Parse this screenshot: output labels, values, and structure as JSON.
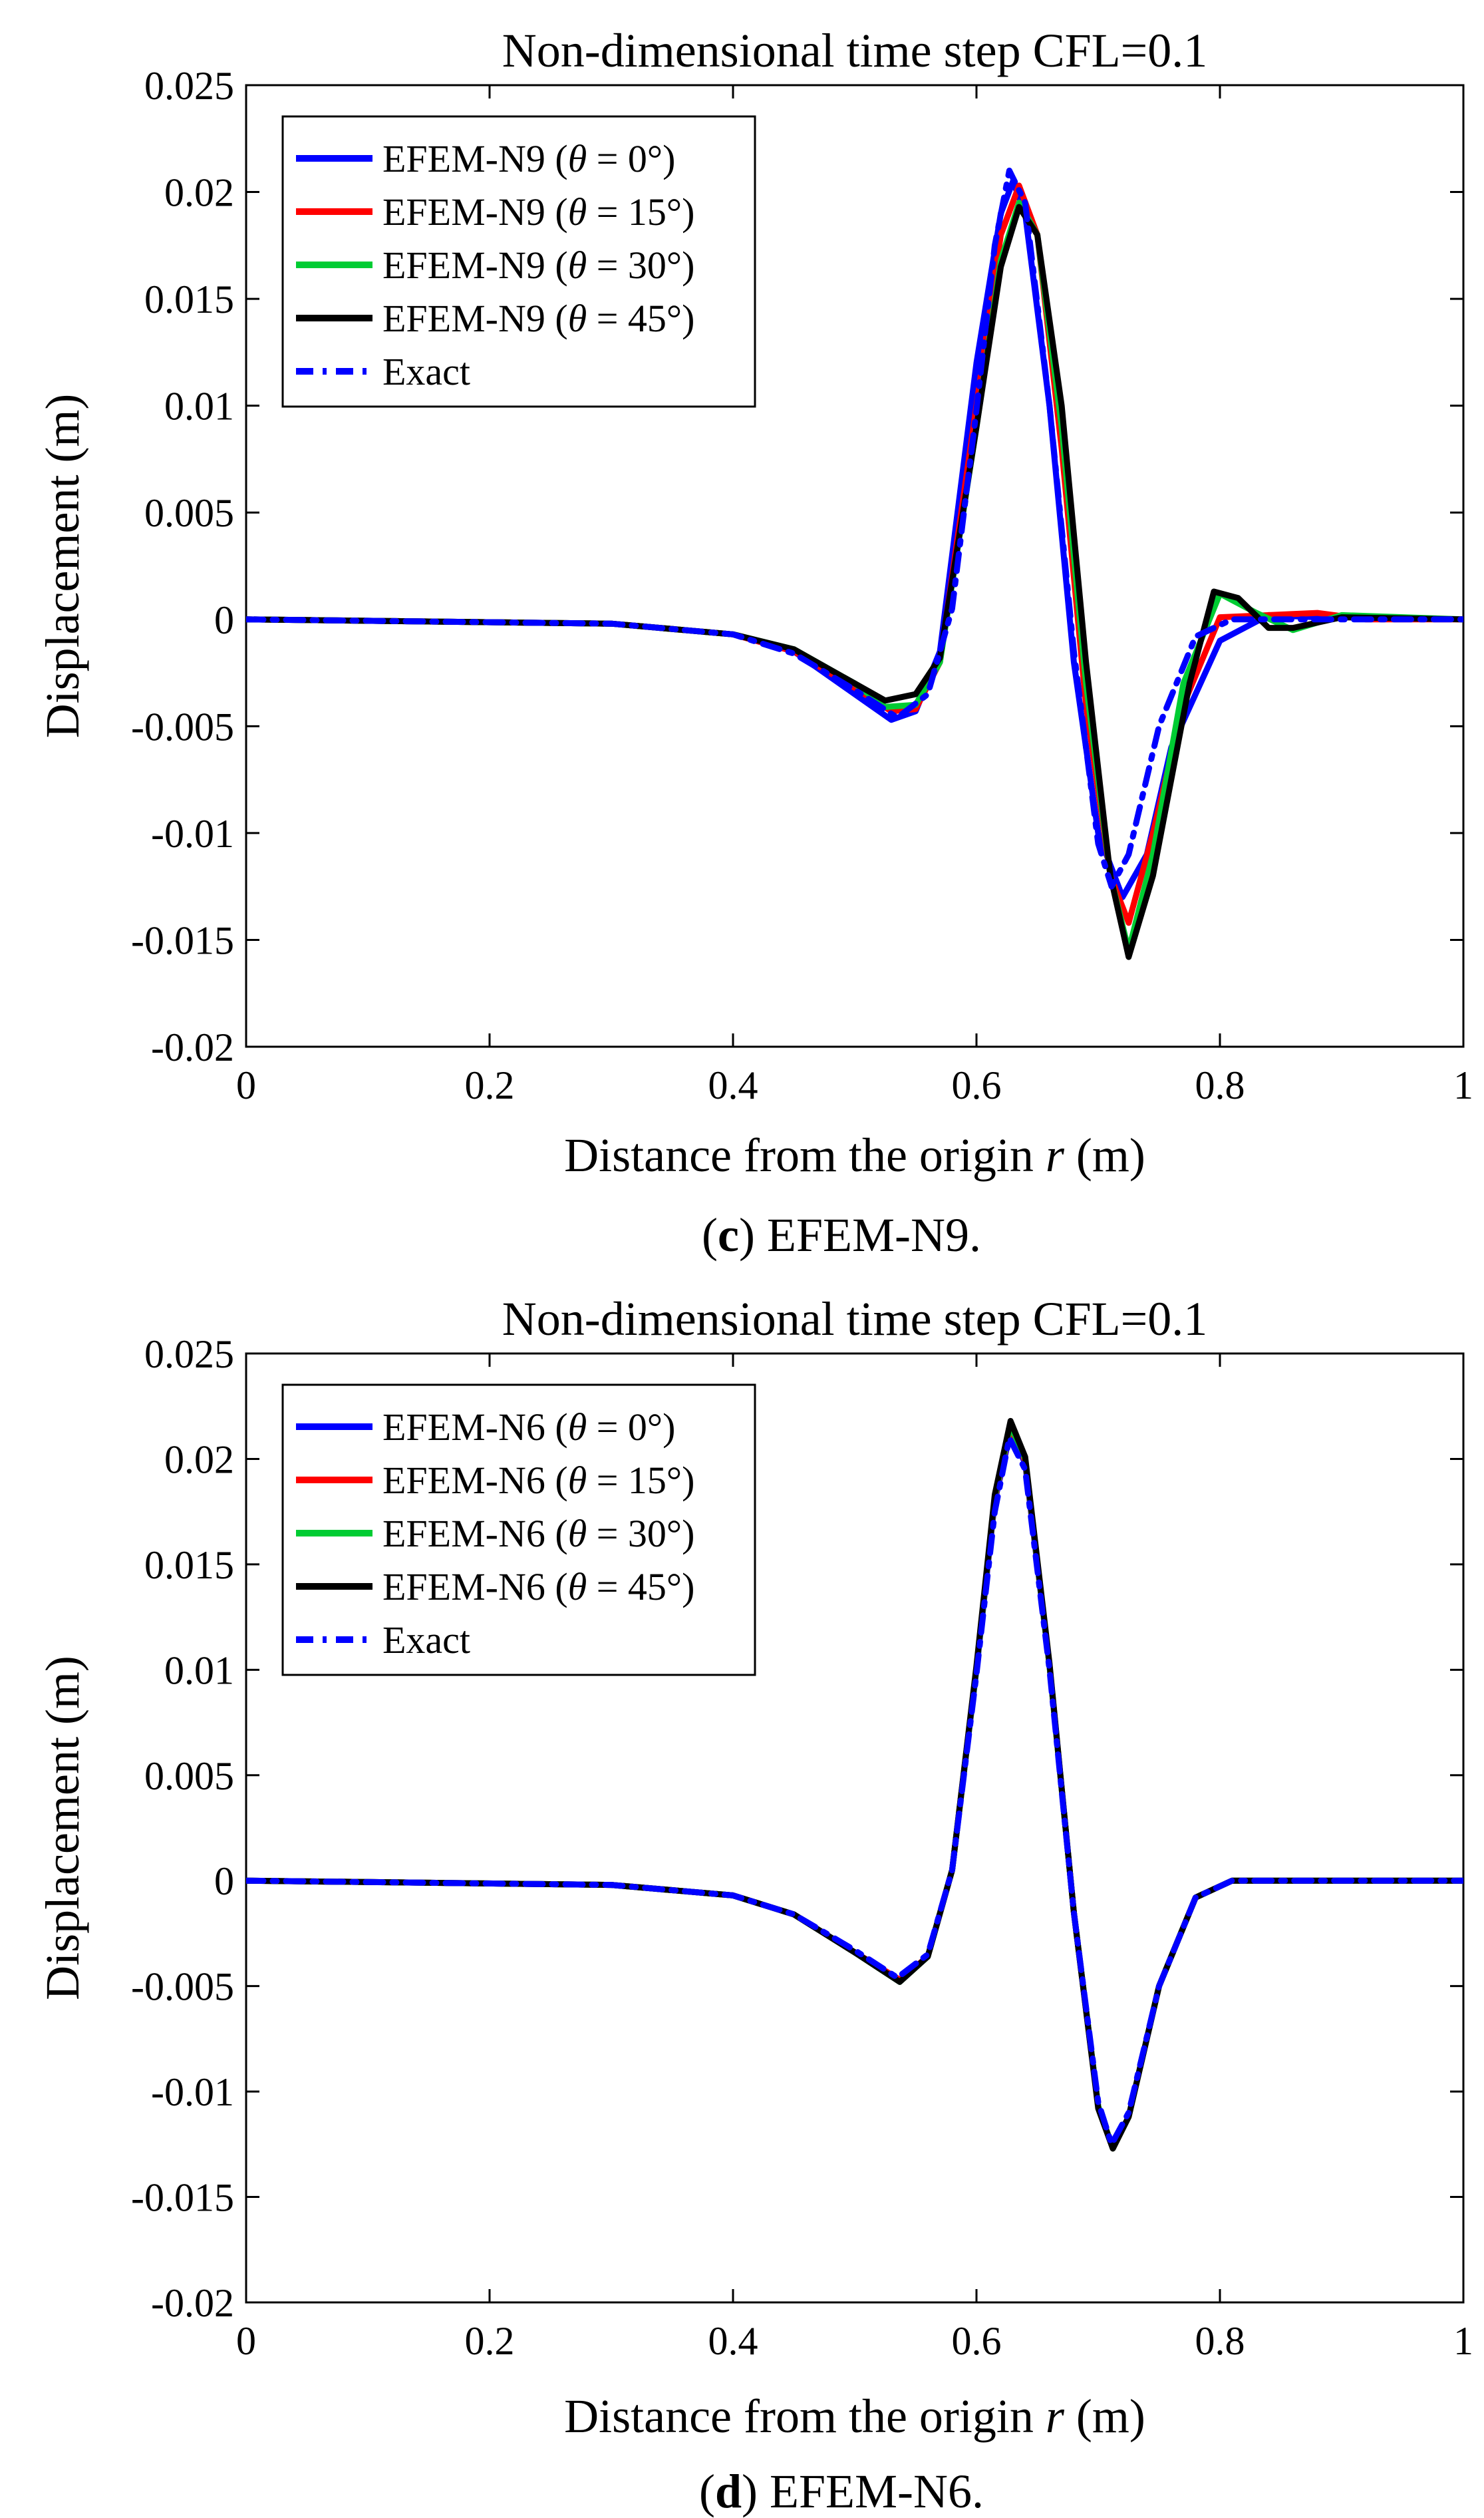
{
  "chart_data": [
    {
      "type": "line",
      "title": "Non-dimensional time step CFL=0.1",
      "xlabel_prefix": "Distance from the origin ",
      "xlabel_var": "r",
      "xlabel_suffix": " (m)",
      "ylabel": "Displacement (m)",
      "xlim": [
        0,
        1
      ],
      "ylim": [
        -0.02,
        0.025
      ],
      "xticks": [
        0,
        0.2,
        0.4,
        0.6,
        0.8,
        1
      ],
      "xtick_labels": [
        "0",
        "0.2",
        "0.4",
        "0.6",
        "0.8",
        "1"
      ],
      "yticks": [
        -0.02,
        -0.015,
        -0.01,
        -0.005,
        0,
        0.005,
        0.01,
        0.015,
        0.02,
        0.025
      ],
      "ytick_labels": [
        "-0.02",
        "-0.015",
        "-0.01",
        "-0.005",
        "0",
        "0.005",
        "0.01",
        "0.015",
        "0.02",
        "0.025"
      ],
      "grid": false,
      "legend_position": "top-left",
      "caption_letter": "c",
      "caption_text": " EFEM-N9.",
      "series": [
        {
          "name": "EFEM-N9",
          "theta": "0°",
          "color": "#0000ff",
          "dash": "solid",
          "x": [
            0,
            0.3,
            0.4,
            0.45,
            0.5,
            0.53,
            0.55,
            0.57,
            0.6,
            0.62,
            0.63,
            0.64,
            0.66,
            0.68,
            0.7,
            0.72,
            0.74,
            0.76,
            0.8,
            0.84,
            0.88,
            0.92,
            1
          ],
          "y": [
            0,
            -0.0002,
            -0.0007,
            -0.0015,
            -0.0035,
            -0.0047,
            -0.0043,
            -0.0015,
            0.012,
            0.019,
            0.0205,
            0.019,
            0.01,
            -0.002,
            -0.01,
            -0.013,
            -0.011,
            -0.006,
            -0.001,
            0.0002,
            0.0001,
            0.0001,
            0
          ]
        },
        {
          "name": "EFEM-N9",
          "theta": "15°",
          "color": "#ff0000",
          "dash": "solid",
          "x": [
            0,
            0.3,
            0.4,
            0.45,
            0.5,
            0.53,
            0.55,
            0.57,
            0.6,
            0.62,
            0.635,
            0.65,
            0.67,
            0.69,
            0.71,
            0.725,
            0.745,
            0.77,
            0.8,
            0.84,
            0.88,
            0.92,
            1
          ],
          "y": [
            0,
            -0.0002,
            -0.0007,
            -0.0015,
            -0.0032,
            -0.0043,
            -0.0042,
            -0.002,
            0.01,
            0.018,
            0.0203,
            0.018,
            0.008,
            -0.004,
            -0.012,
            -0.0142,
            -0.01,
            -0.004,
            0.0001,
            0.0002,
            0.0003,
            0,
            0
          ]
        },
        {
          "name": "EFEM-N9",
          "theta": "30°",
          "color": "#00cc33",
          "dash": "solid",
          "x": [
            0,
            0.3,
            0.4,
            0.45,
            0.5,
            0.525,
            0.55,
            0.57,
            0.6,
            0.62,
            0.635,
            0.65,
            0.67,
            0.69,
            0.71,
            0.725,
            0.745,
            0.77,
            0.8,
            0.83,
            0.86,
            0.9,
            1
          ],
          "y": [
            0,
            -0.0002,
            -0.0007,
            -0.0014,
            -0.003,
            -0.0041,
            -0.004,
            -0.002,
            0.009,
            0.0168,
            0.0195,
            0.018,
            0.009,
            -0.003,
            -0.012,
            -0.0155,
            -0.011,
            -0.003,
            0.0012,
            0.0003,
            -0.0005,
            0.0002,
            0
          ]
        },
        {
          "name": "EFEM-N9",
          "theta": "45°",
          "color": "#000000",
          "dash": "solid",
          "x": [
            0,
            0.3,
            0.4,
            0.45,
            0.5,
            0.525,
            0.55,
            0.57,
            0.6,
            0.62,
            0.635,
            0.65,
            0.67,
            0.69,
            0.71,
            0.725,
            0.745,
            0.775,
            0.795,
            0.815,
            0.84,
            0.86,
            0.9,
            1
          ],
          "y": [
            0,
            -0.0002,
            -0.0007,
            -0.0014,
            -0.003,
            -0.0038,
            -0.0035,
            -0.0018,
            0.009,
            0.0165,
            0.0193,
            0.018,
            0.01,
            -0.002,
            -0.012,
            -0.0158,
            -0.012,
            -0.003,
            0.0013,
            0.001,
            -0.0004,
            -0.0004,
            0.0001,
            0
          ]
        },
        {
          "name": "Exact",
          "theta": "",
          "color": "#0000ff",
          "dash": "dashdot",
          "x": [
            0,
            0.3,
            0.4,
            0.45,
            0.5,
            0.535,
            0.56,
            0.58,
            0.6,
            0.615,
            0.627,
            0.64,
            0.66,
            0.68,
            0.7,
            0.711,
            0.725,
            0.75,
            0.78,
            0.81,
            0.85,
            1
          ],
          "y": [
            0,
            -0.0002,
            -0.0007,
            -0.0016,
            -0.0033,
            -0.0046,
            -0.0035,
            0.0005,
            0.0098,
            0.0175,
            0.021,
            0.0195,
            0.01,
            -0.0015,
            -0.0105,
            -0.0125,
            -0.011,
            -0.005,
            -0.0008,
            0,
            0,
            0
          ]
        }
      ]
    },
    {
      "type": "line",
      "title": "Non-dimensional time step CFL=0.1",
      "xlabel_prefix": "Distance from the origin ",
      "xlabel_var": "r",
      "xlabel_suffix": " (m)",
      "ylabel": "Displacement (m)",
      "xlim": [
        0,
        1
      ],
      "ylim": [
        -0.02,
        0.025
      ],
      "xticks": [
        0,
        0.2,
        0.4,
        0.6,
        0.8,
        1
      ],
      "xtick_labels": [
        "0",
        "0.2",
        "0.4",
        "0.6",
        "0.8",
        "1"
      ],
      "yticks": [
        -0.02,
        -0.015,
        -0.01,
        -0.005,
        0,
        0.005,
        0.01,
        0.015,
        0.02,
        0.025
      ],
      "ytick_labels": [
        "-0.02",
        "-0.015",
        "-0.01",
        "-0.005",
        "0",
        "0.005",
        "0.01",
        "0.015",
        "0.02",
        "0.025"
      ],
      "grid": false,
      "legend_position": "top-left",
      "caption_letter": "d",
      "caption_text": " EFEM-N6.",
      "series": [
        {
          "name": "EFEM-N6",
          "theta": "0°",
          "color": "#0000ff",
          "dash": "solid",
          "x": [
            0,
            0.3,
            0.4,
            0.45,
            0.5,
            0.537,
            0.56,
            0.58,
            0.6,
            0.615,
            0.628,
            0.64,
            0.66,
            0.68,
            0.7,
            0.712,
            0.725,
            0.75,
            0.78,
            0.81,
            0.85,
            1
          ],
          "y": [
            0,
            -0.0002,
            -0.0007,
            -0.0016,
            -0.0034,
            -0.0047,
            -0.0036,
            0.0005,
            0.01,
            0.018,
            0.0213,
            0.0198,
            0.0102,
            -0.0015,
            -0.0107,
            -0.0127,
            -0.0112,
            -0.005,
            -0.0008,
            0,
            0,
            0
          ]
        },
        {
          "name": "EFEM-N6",
          "theta": "15°",
          "color": "#ff0000",
          "dash": "solid",
          "x": [
            0,
            0.3,
            0.4,
            0.45,
            0.5,
            0.537,
            0.56,
            0.58,
            0.6,
            0.615,
            0.628,
            0.64,
            0.66,
            0.68,
            0.7,
            0.712,
            0.725,
            0.75,
            0.78,
            0.81,
            0.85,
            1
          ],
          "y": [
            0,
            -0.0002,
            -0.0007,
            -0.0016,
            -0.0034,
            -0.0047,
            -0.0036,
            0.0005,
            0.0101,
            0.0181,
            0.0215,
            0.0199,
            0.0102,
            -0.0015,
            -0.0107,
            -0.0127,
            -0.0112,
            -0.005,
            -0.0008,
            0,
            0,
            0
          ]
        },
        {
          "name": "EFEM-N6",
          "theta": "30°",
          "color": "#00cc33",
          "dash": "solid",
          "x": [
            0,
            0.3,
            0.4,
            0.45,
            0.5,
            0.537,
            0.56,
            0.58,
            0.6,
            0.615,
            0.628,
            0.64,
            0.66,
            0.68,
            0.7,
            0.712,
            0.725,
            0.75,
            0.78,
            0.81,
            0.85,
            1
          ],
          "y": [
            0,
            -0.0002,
            -0.0007,
            -0.0016,
            -0.0034,
            -0.0048,
            -0.0036,
            0.0005,
            0.0101,
            0.0182,
            0.0216,
            0.02,
            0.0102,
            -0.0015,
            -0.0107,
            -0.0127,
            -0.0112,
            -0.005,
            -0.0008,
            0,
            0,
            0
          ]
        },
        {
          "name": "EFEM-N6",
          "theta": "45°",
          "color": "#000000",
          "dash": "solid",
          "x": [
            0,
            0.3,
            0.4,
            0.45,
            0.5,
            0.537,
            0.56,
            0.58,
            0.6,
            0.615,
            0.628,
            0.64,
            0.66,
            0.68,
            0.7,
            0.712,
            0.725,
            0.75,
            0.78,
            0.81,
            0.85,
            1
          ],
          "y": [
            0,
            -0.0002,
            -0.0007,
            -0.0016,
            -0.0034,
            -0.0048,
            -0.0036,
            0.0005,
            0.0102,
            0.0183,
            0.0218,
            0.0201,
            0.0103,
            -0.0015,
            -0.0108,
            -0.0127,
            -0.0112,
            -0.005,
            -0.0008,
            0,
            0,
            0
          ]
        },
        {
          "name": "Exact",
          "theta": "",
          "color": "#0000ff",
          "dash": "dashdot",
          "x": [
            0,
            0.3,
            0.4,
            0.45,
            0.5,
            0.535,
            0.56,
            0.58,
            0.6,
            0.615,
            0.627,
            0.64,
            0.66,
            0.68,
            0.7,
            0.711,
            0.725,
            0.75,
            0.78,
            0.81,
            0.85,
            1
          ],
          "y": [
            0,
            -0.0002,
            -0.0007,
            -0.0016,
            -0.0033,
            -0.0046,
            -0.0035,
            0.0005,
            0.0098,
            0.0175,
            0.021,
            0.0195,
            0.01,
            -0.0015,
            -0.0105,
            -0.0125,
            -0.011,
            -0.005,
            -0.0008,
            0,
            0,
            0
          ]
        }
      ]
    }
  ]
}
